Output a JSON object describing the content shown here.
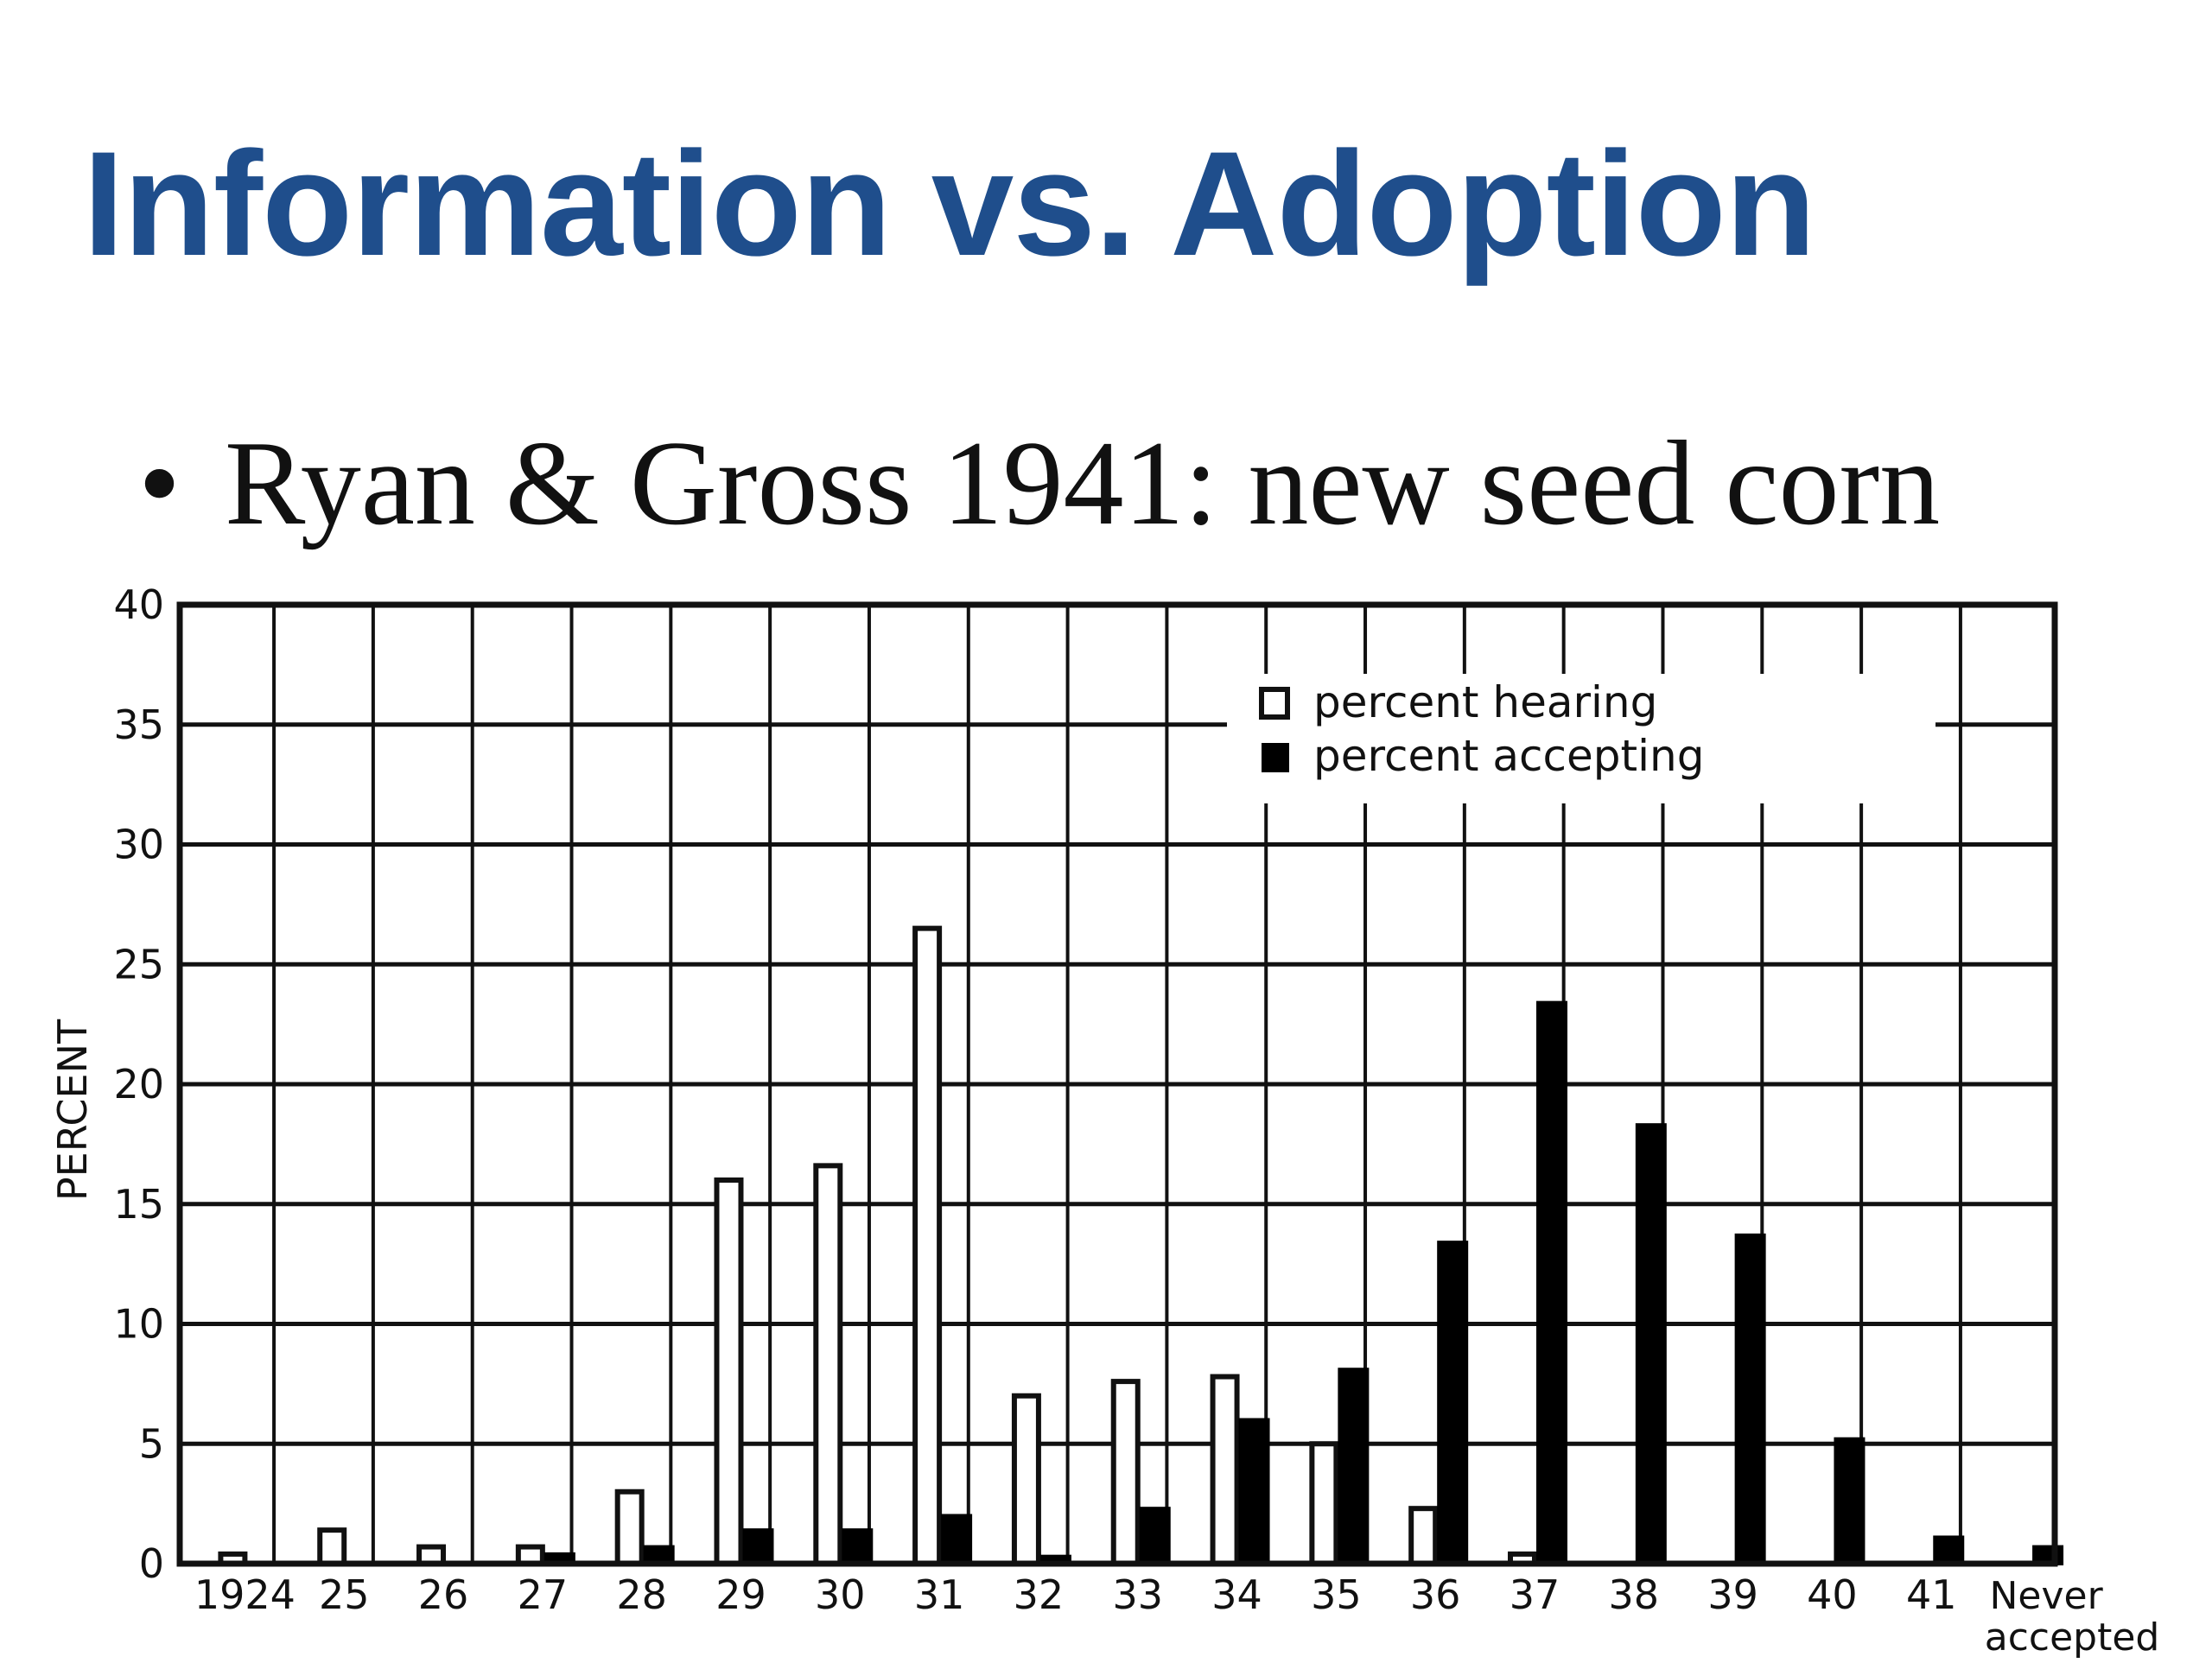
{
  "slide": {
    "title": "Information vs. Adoption",
    "bullet_glyph": "•",
    "bullet": "Ryan & Gross 1941: new seed corn"
  },
  "chart_data": {
    "type": "bar",
    "ylabel": "PERCENT",
    "xlabel": "",
    "ylim": [
      0,
      40
    ],
    "yticks": [
      0,
      5,
      10,
      15,
      20,
      25,
      30,
      35,
      40
    ],
    "grid": true,
    "legend_position": "top-right",
    "categories": [
      "1924",
      "25",
      "26",
      "27",
      "28",
      "29",
      "30",
      "31",
      "32",
      "33",
      "34",
      "35",
      "36",
      "37",
      "38",
      "39",
      "40",
      "41",
      "Never accepted"
    ],
    "series": [
      {
        "name": "percent hearing",
        "color": "#ffffff",
        "values": [
          0.4,
          1.4,
          0.7,
          0.7,
          3.0,
          16.0,
          16.6,
          26.5,
          7.0,
          7.6,
          7.8,
          5.0,
          2.3,
          0.4,
          0,
          0,
          0,
          0,
          0
        ]
      },
      {
        "name": "percent accepting",
        "color": "#000000",
        "values": [
          0,
          0,
          0,
          0.4,
          0.7,
          1.4,
          1.4,
          2.0,
          0.3,
          2.3,
          6.0,
          8.1,
          13.4,
          23.4,
          18.3,
          13.7,
          5.2,
          1.1,
          0.7
        ]
      }
    ]
  }
}
